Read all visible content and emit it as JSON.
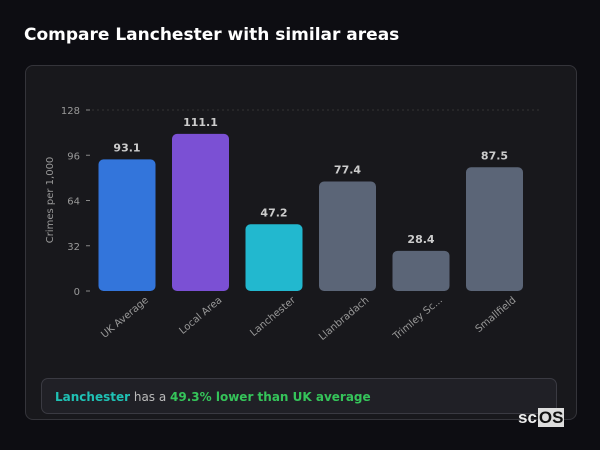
{
  "title": "Compare Lanchester with similar areas",
  "chart_data": {
    "type": "bar",
    "categories": [
      "UK Average",
      "Local Area",
      "Lanchester",
      "Llanbradach",
      "Trimley Sc...",
      "Smallfield"
    ],
    "values": [
      93.1,
      111.1,
      47.2,
      77.4,
      28.4,
      87.5
    ],
    "colors": [
      "#3375db",
      "#7b50d4",
      "#22b8cf",
      "#5b6577",
      "#5b6577",
      "#5b6577"
    ],
    "ylabel": "Crimes per 1,000",
    "xlabel": "",
    "ylim": [
      0,
      128
    ],
    "yticks": [
      0,
      32,
      64,
      96,
      128
    ],
    "grid": false
  },
  "footer": {
    "area": "Lanchester",
    "mid": " has a ",
    "highlight": "49.3% lower than UK average"
  },
  "logo": {
    "pre": "sc",
    "box": "OS"
  }
}
